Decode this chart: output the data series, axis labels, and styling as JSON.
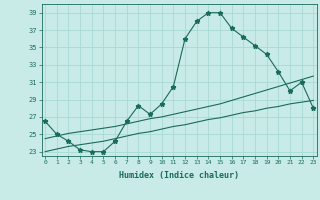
{
  "xlabel": "Humidex (Indice chaleur)",
  "background_color": "#c8ebe8",
  "grid_color": "#a8d8d4",
  "line_color": "#1a6b5a",
  "x": [
    0,
    1,
    2,
    3,
    4,
    5,
    6,
    7,
    8,
    9,
    10,
    11,
    12,
    13,
    14,
    15,
    16,
    17,
    18,
    19,
    20,
    21,
    22,
    23
  ],
  "y_main": [
    26.5,
    25.0,
    24.2,
    23.2,
    23.0,
    23.0,
    24.2,
    26.5,
    28.3,
    27.3,
    28.5,
    30.5,
    36.0,
    38.0,
    39.0,
    39.0,
    37.2,
    36.2,
    35.2,
    34.2,
    32.2,
    30.0,
    31.0,
    28.0
  ],
  "y_line2": [
    24.5,
    24.8,
    25.1,
    25.3,
    25.5,
    25.7,
    25.9,
    26.2,
    26.5,
    26.8,
    27.0,
    27.3,
    27.6,
    27.9,
    28.2,
    28.5,
    28.9,
    29.3,
    29.7,
    30.1,
    30.5,
    30.9,
    31.3,
    31.7
  ],
  "y_line3": [
    23.0,
    23.3,
    23.6,
    23.8,
    24.0,
    24.2,
    24.5,
    24.8,
    25.1,
    25.3,
    25.6,
    25.9,
    26.1,
    26.4,
    26.7,
    26.9,
    27.2,
    27.5,
    27.7,
    28.0,
    28.2,
    28.5,
    28.7,
    28.9
  ],
  "ylim": [
    22.5,
    40
  ],
  "xlim": [
    -0.3,
    23.3
  ],
  "yticks": [
    23,
    25,
    27,
    29,
    31,
    33,
    35,
    37,
    39
  ],
  "xticks": [
    0,
    1,
    2,
    3,
    4,
    5,
    6,
    7,
    8,
    9,
    10,
    11,
    12,
    13,
    14,
    15,
    16,
    17,
    18,
    19,
    20,
    21,
    22,
    23
  ]
}
